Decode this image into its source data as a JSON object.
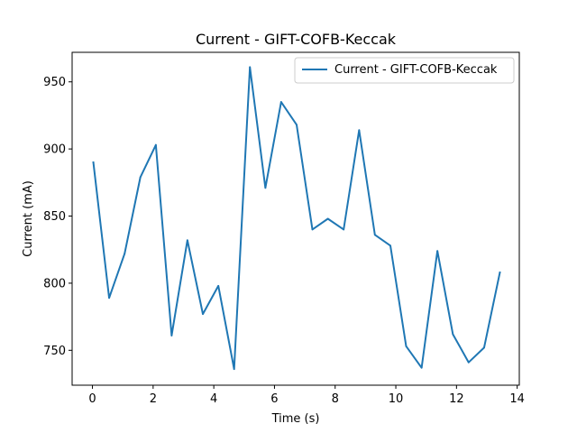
{
  "chart_data": {
    "type": "line",
    "title": "Current - GIFT-COFB-Keccak",
    "xlabel": "Time (s)",
    "ylabel": "Current (mA)",
    "xlim": [
      -0.67,
      14.07
    ],
    "ylim": [
      724,
      972
    ],
    "xticks": [
      0,
      2,
      4,
      6,
      8,
      10,
      12,
      14
    ],
    "xtick_labels": [
      "0",
      "2",
      "4",
      "6",
      "8",
      "10",
      "12",
      "14"
    ],
    "yticks": [
      750,
      800,
      850,
      900,
      950
    ],
    "ytick_labels": [
      "750",
      "800",
      "850",
      "900",
      "950"
    ],
    "grid": false,
    "legend_position": "upper right",
    "series": [
      {
        "name": "Current - GIFT-COFB-Keccak",
        "color": "#1f77b4",
        "x": [
          0.03,
          0.55,
          1.06,
          1.58,
          2.09,
          2.61,
          3.13,
          3.64,
          4.15,
          4.67,
          5.19,
          5.7,
          6.22,
          6.73,
          7.25,
          7.76,
          8.28,
          8.79,
          9.31,
          9.82,
          10.34,
          10.85,
          11.37,
          11.88,
          12.4,
          12.91,
          13.43
        ],
        "y": [
          890,
          789,
          822,
          879,
          903,
          761,
          832,
          777,
          798,
          736,
          961,
          871,
          935,
          918,
          840,
          848,
          840,
          914,
          836,
          828,
          753,
          737,
          824,
          762,
          741,
          752,
          808
        ]
      }
    ]
  }
}
